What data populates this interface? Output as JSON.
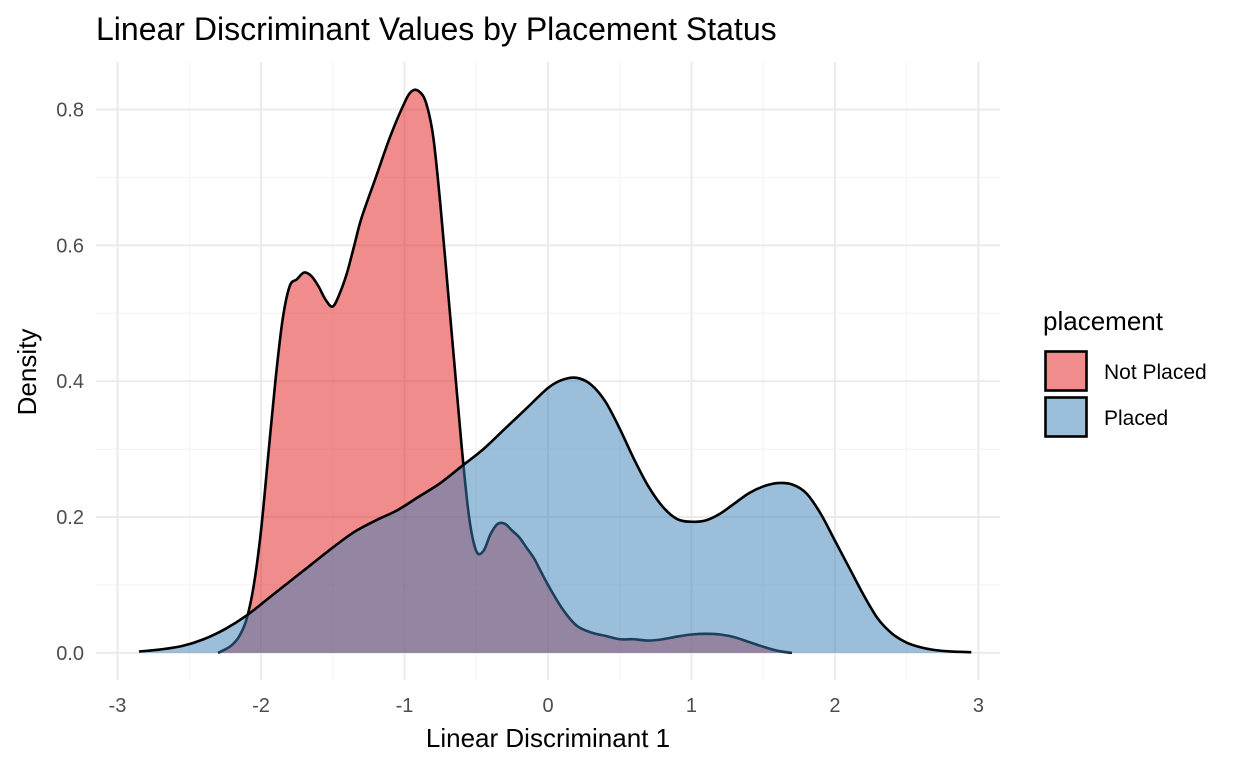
{
  "chart_data": {
    "type": "area",
    "title": "Linear Discriminant Values by Placement Status",
    "xlabel": "Linear Discriminant 1",
    "ylabel": "Density",
    "xlim": [
      -3.15,
      3.15
    ],
    "ylim": [
      -0.04,
      0.87
    ],
    "xticks": [
      -3,
      -2,
      -1,
      0,
      1,
      2,
      3
    ],
    "yticks": [
      0.0,
      0.2,
      0.4,
      0.6,
      0.8
    ],
    "xtick_labels": [
      "-3",
      "-2",
      "-1",
      "0",
      "1",
      "2",
      "3"
    ],
    "ytick_labels": [
      "0.0",
      "0.2",
      "0.4",
      "0.6",
      "0.8"
    ],
    "grid": true,
    "legend": {
      "title": "placement",
      "position": "right",
      "entries": [
        "Not Placed",
        "Placed"
      ]
    },
    "series": [
      {
        "name": "Not Placed",
        "color": "#e41a1c",
        "opacity": 0.5,
        "x": [
          -2.3,
          -2.25,
          -2.2,
          -2.15,
          -2.1,
          -2.05,
          -2.0,
          -1.95,
          -1.9,
          -1.85,
          -1.8,
          -1.75,
          -1.7,
          -1.65,
          -1.6,
          -1.55,
          -1.5,
          -1.45,
          -1.4,
          -1.35,
          -1.3,
          -1.2,
          -1.1,
          -1.0,
          -0.95,
          -0.9,
          -0.85,
          -0.8,
          -0.75,
          -0.7,
          -0.65,
          -0.6,
          -0.55,
          -0.5,
          -0.45,
          -0.4,
          -0.35,
          -0.3,
          -0.25,
          -0.2,
          -0.15,
          -0.1,
          -0.05,
          0.0,
          0.1,
          0.2,
          0.3,
          0.4,
          0.5,
          0.6,
          0.7,
          0.8,
          0.9,
          1.0,
          1.1,
          1.2,
          1.3,
          1.4,
          1.5,
          1.6,
          1.7
        ],
        "y": [
          0.0,
          0.005,
          0.012,
          0.025,
          0.05,
          0.1,
          0.18,
          0.29,
          0.4,
          0.49,
          0.54,
          0.55,
          0.56,
          0.555,
          0.54,
          0.52,
          0.51,
          0.53,
          0.56,
          0.6,
          0.64,
          0.7,
          0.76,
          0.81,
          0.827,
          0.827,
          0.81,
          0.76,
          0.66,
          0.54,
          0.42,
          0.3,
          0.2,
          0.15,
          0.15,
          0.175,
          0.19,
          0.19,
          0.18,
          0.17,
          0.155,
          0.14,
          0.12,
          0.1,
          0.065,
          0.04,
          0.03,
          0.025,
          0.02,
          0.02,
          0.018,
          0.02,
          0.024,
          0.027,
          0.028,
          0.027,
          0.023,
          0.016,
          0.009,
          0.003,
          0.0
        ]
      },
      {
        "name": "Placed",
        "color": "#377eb8",
        "opacity": 0.5,
        "x": [
          -2.85,
          -2.7,
          -2.55,
          -2.4,
          -2.25,
          -2.1,
          -1.95,
          -1.8,
          -1.65,
          -1.5,
          -1.35,
          -1.2,
          -1.05,
          -0.9,
          -0.75,
          -0.6,
          -0.45,
          -0.3,
          -0.15,
          0.0,
          0.1,
          0.2,
          0.3,
          0.4,
          0.5,
          0.6,
          0.7,
          0.8,
          0.9,
          1.0,
          1.1,
          1.2,
          1.3,
          1.4,
          1.5,
          1.6,
          1.7,
          1.8,
          1.9,
          2.0,
          2.1,
          2.2,
          2.3,
          2.4,
          2.5,
          2.6,
          2.7,
          2.8,
          2.95
        ],
        "y": [
          0.002,
          0.005,
          0.01,
          0.02,
          0.035,
          0.055,
          0.08,
          0.105,
          0.13,
          0.155,
          0.178,
          0.195,
          0.21,
          0.23,
          0.25,
          0.275,
          0.3,
          0.33,
          0.36,
          0.39,
          0.402,
          0.405,
          0.395,
          0.37,
          0.33,
          0.285,
          0.245,
          0.215,
          0.197,
          0.193,
          0.195,
          0.205,
          0.22,
          0.235,
          0.245,
          0.25,
          0.248,
          0.235,
          0.205,
          0.165,
          0.125,
          0.085,
          0.05,
          0.028,
          0.015,
          0.008,
          0.004,
          0.002,
          0.001
        ]
      }
    ]
  }
}
